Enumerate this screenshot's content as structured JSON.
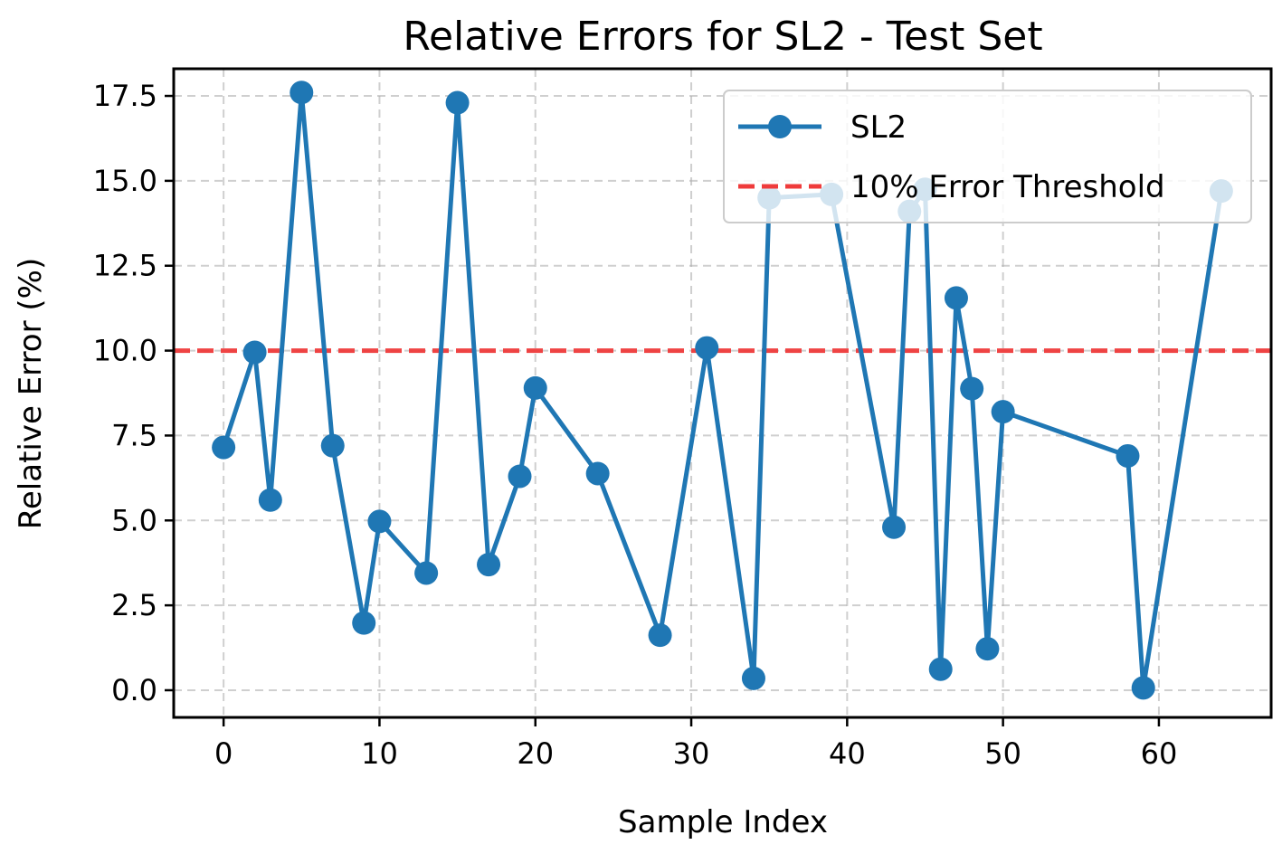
{
  "chart_data": {
    "type": "line",
    "title": "Relative Errors for SL2 - Test Set",
    "xlabel": "Sample Index",
    "ylabel": "Relative Error (%)",
    "xlim": [
      -3.2,
      67.2
    ],
    "ylim": [
      -0.8,
      18.3
    ],
    "xticks": [
      0,
      10,
      20,
      30,
      40,
      50,
      60
    ],
    "xtick_labels": [
      "0",
      "10",
      "20",
      "30",
      "40",
      "50",
      "60"
    ],
    "yticks": [
      0,
      2.5,
      5,
      7.5,
      10,
      12.5,
      15,
      17.5
    ],
    "ytick_labels": [
      "0.0",
      "2.5",
      "5.0",
      "7.5",
      "10.0",
      "12.5",
      "15.0",
      "17.5"
    ],
    "grid": true,
    "legend_position": "upper right",
    "series": [
      {
        "name": "SL2",
        "color": "#1f77b4",
        "marker": "circle",
        "x": [
          0,
          2,
          3,
          5,
          7,
          9,
          10,
          13,
          15,
          17,
          19,
          20,
          24,
          28,
          31,
          34,
          35,
          39,
          43,
          44,
          45,
          46,
          47,
          48,
          49,
          50,
          58,
          59,
          64
        ],
        "y": [
          7.15,
          9.95,
          5.6,
          17.6,
          7.2,
          1.98,
          4.97,
          3.45,
          17.3,
          3.7,
          6.3,
          8.9,
          6.38,
          1.62,
          10.08,
          0.35,
          14.5,
          14.6,
          4.8,
          14.1,
          14.75,
          0.62,
          11.55,
          8.88,
          1.22,
          8.2,
          6.9,
          0.07,
          14.7
        ]
      }
    ],
    "reference_lines": [
      {
        "name": "10% Error Threshold",
        "y": 10,
        "color": "#ef3b3b",
        "style": "dashed"
      }
    ]
  }
}
